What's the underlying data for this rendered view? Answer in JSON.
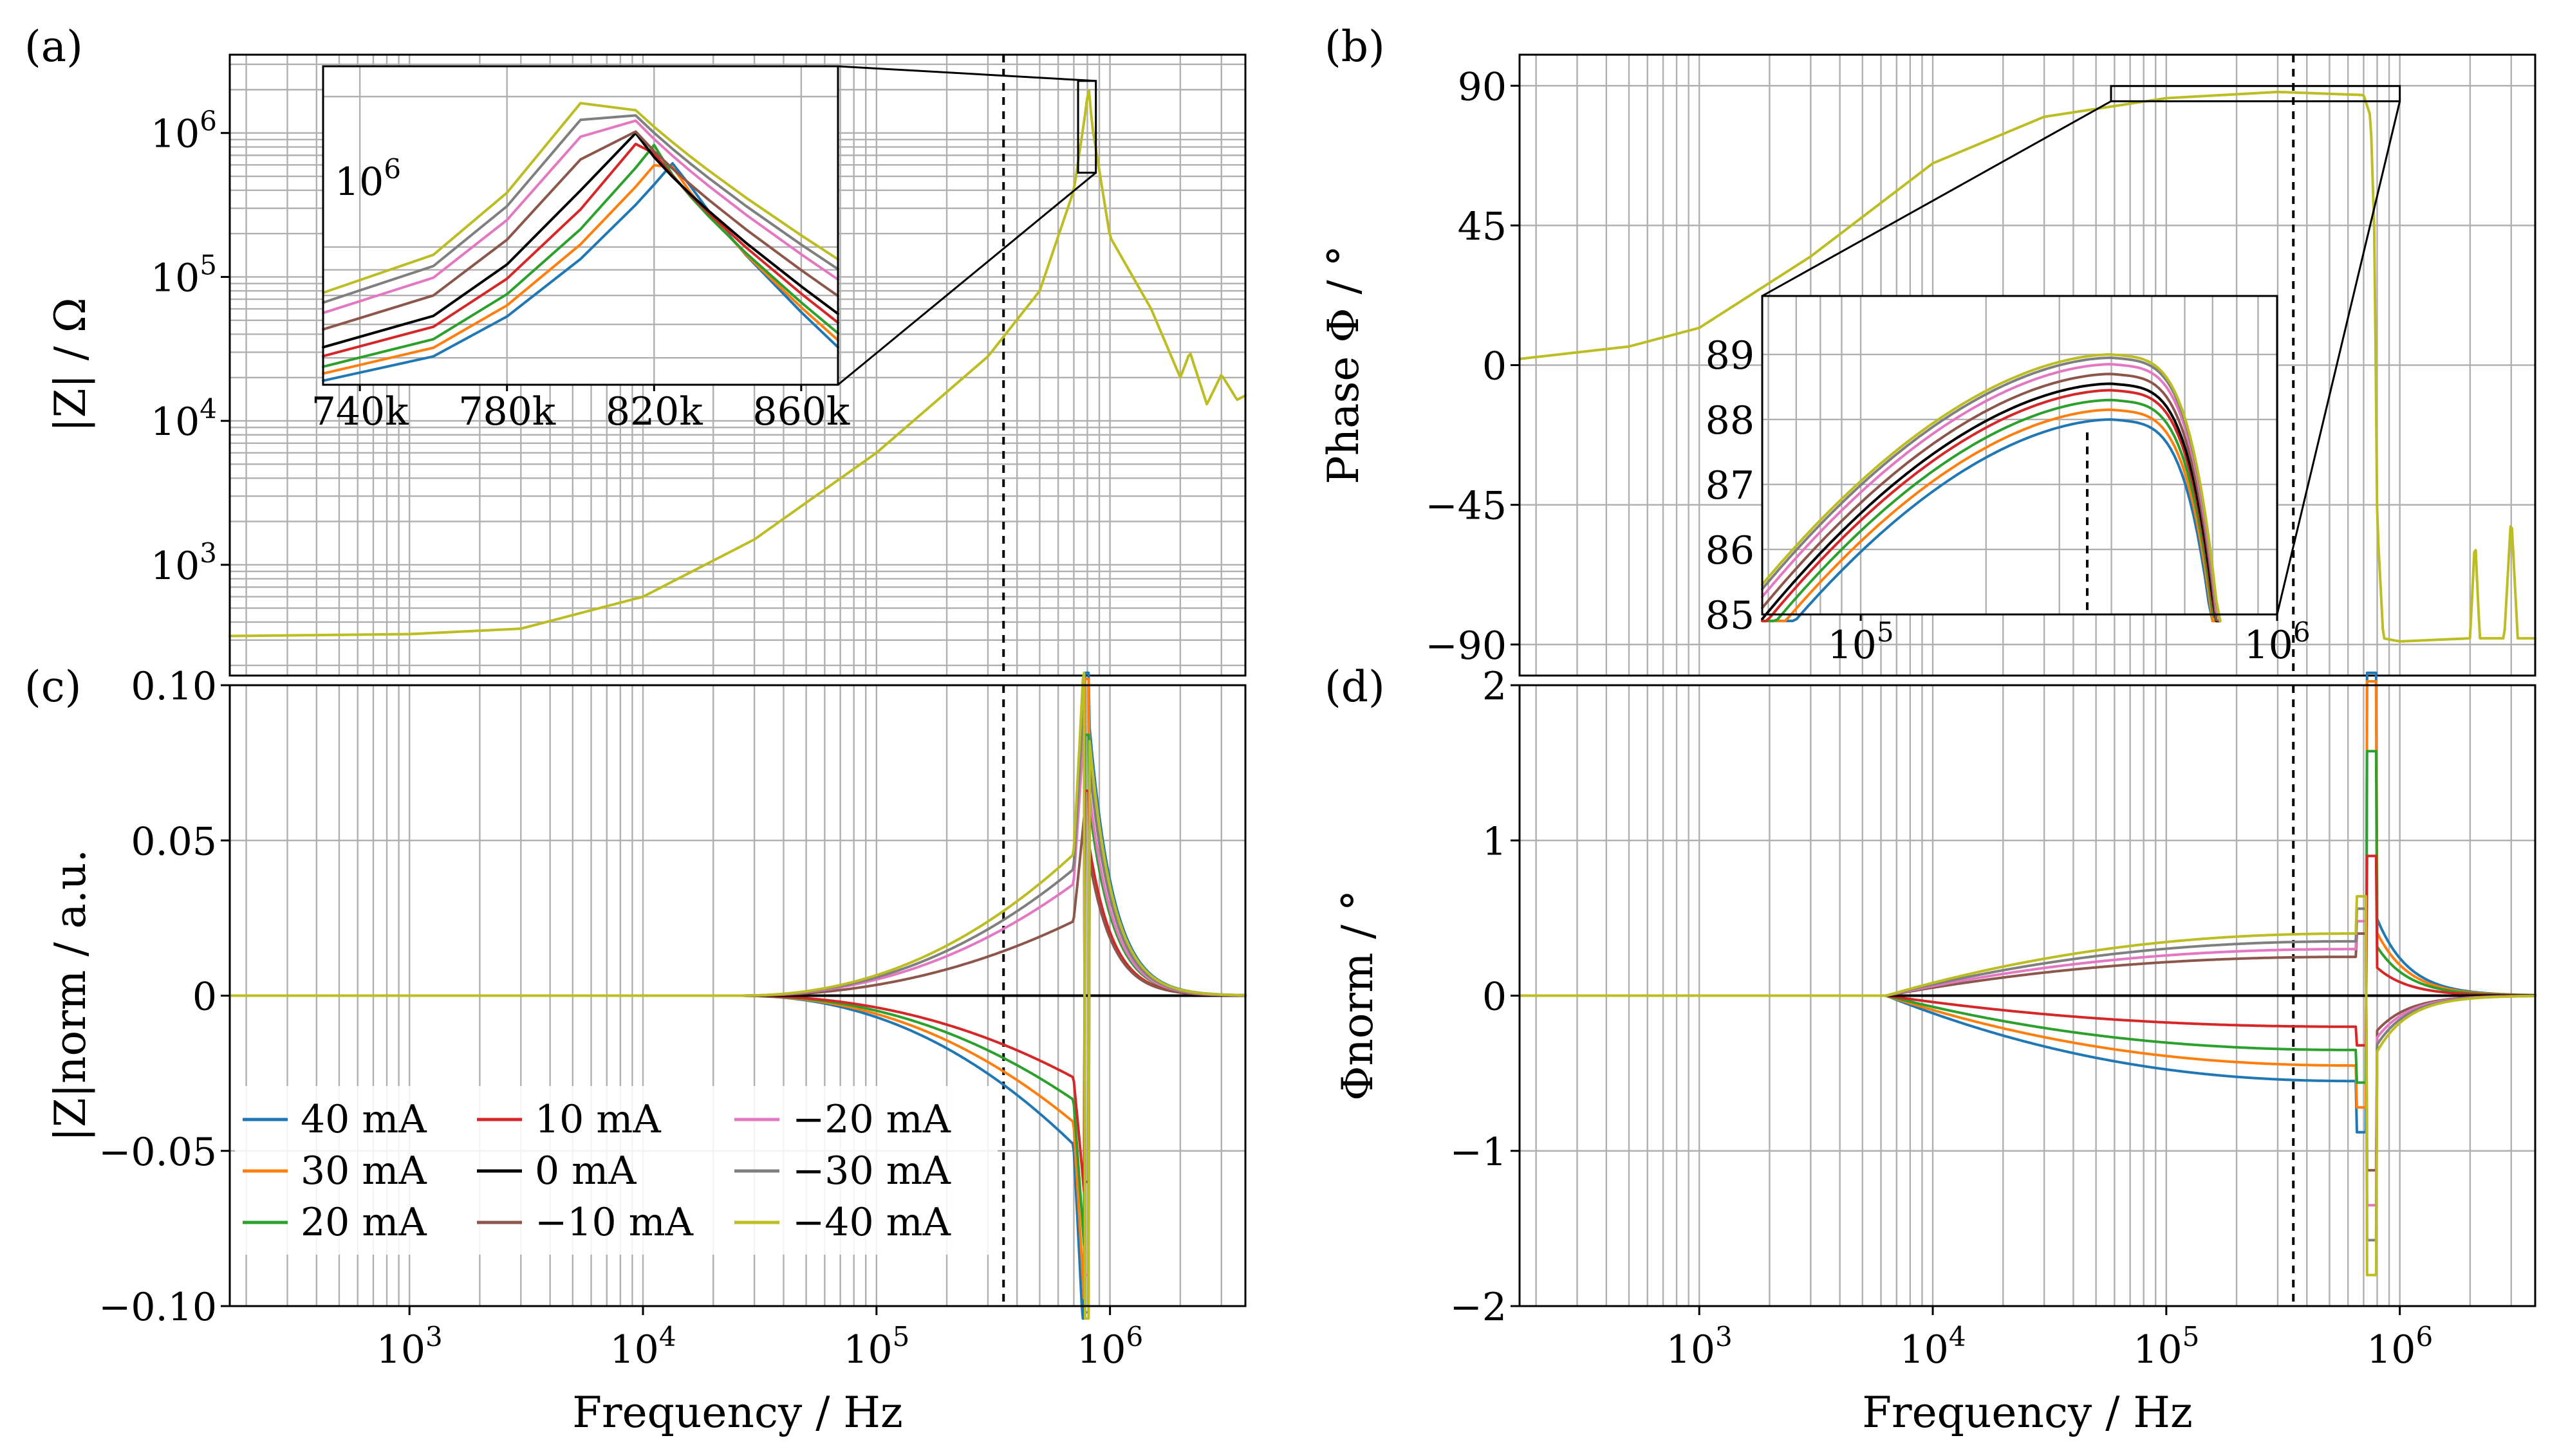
{
  "chart_data": [
    {
      "panel": "(a)",
      "type": "line",
      "scale": "loglog",
      "xlabel": "Frequency / Hz",
      "ylabel": "|Z| / Ω",
      "xlim": [
        170,
        3800000
      ],
      "ylim": [
        170,
        3500000
      ],
      "xtick_labels": [
        "10^3",
        "10^4",
        "10^5",
        "10^6"
      ],
      "ytick_labels": [
        "10^3",
        "10^4",
        "10^5",
        "10^6"
      ],
      "vline_x": 350000,
      "curve_points": [
        [
          170,
          320
        ],
        [
          1000,
          330
        ],
        [
          3000,
          360
        ],
        [
          10000,
          600
        ],
        [
          30000,
          1500
        ],
        [
          100000,
          6000
        ],
        [
          300000,
          28000
        ],
        [
          500000,
          80000
        ],
        [
          700000,
          400000
        ],
        [
          780000,
          1300000
        ],
        [
          810000,
          2100000
        ],
        [
          840000,
          1100000
        ],
        [
          1000000,
          190000
        ],
        [
          1500000,
          60000
        ],
        [
          2000000,
          20000
        ],
        [
          2200000,
          30000
        ],
        [
          2600000,
          13000
        ],
        [
          3000000,
          21000
        ],
        [
          3500000,
          14000
        ],
        [
          3800000,
          15000
        ]
      ],
      "inset": {
        "xlim": [
          730000,
          870000
        ],
        "ylim": [
          530000,
          2300000
        ],
        "xtick_labels": [
          "740k",
          "780k",
          "820k",
          "860k"
        ],
        "ytick_label": "10^6",
        "x_points": [
          730000,
          760000,
          780000,
          800000,
          815000,
          820000,
          825000,
          830000,
          835000,
          845000,
          860000,
          870000
        ],
        "series_peaks": [
          {
            "name": "40 mA",
            "peak": 1500000
          },
          {
            "name": "30 mA",
            "peak": 1550000
          },
          {
            "name": "20 mA",
            "peak": 1600000
          },
          {
            "name": "10 mA",
            "peak": 1680000
          },
          {
            "name": "0 mA",
            "peak": 1750000
          },
          {
            "name": "−10 mA",
            "peak": 1900000
          },
          {
            "name": "−20 mA",
            "peak": 2050000
          },
          {
            "name": "−30 mA",
            "peak": 2150000
          },
          {
            "name": "−40 mA",
            "peak": 2250000
          }
        ]
      }
    },
    {
      "panel": "(b)",
      "type": "line",
      "scale": "semilogx",
      "xlabel": "",
      "ylabel": "Phase Φ / °",
      "xlim": [
        170,
        3800000
      ],
      "ylim": [
        -100,
        100
      ],
      "xtick_labels": [],
      "ytick_labels": [
        "90",
        "45",
        "0",
        "−45",
        "−90"
      ],
      "ytick_values": [
        90,
        45,
        0,
        -45,
        -90
      ],
      "vline_x": 350000,
      "curve_points": [
        [
          170,
          2
        ],
        [
          500,
          6
        ],
        [
          1000,
          12
        ],
        [
          3000,
          35
        ],
        [
          10000,
          65
        ],
        [
          30000,
          80
        ],
        [
          100000,
          86
        ],
        [
          300000,
          88
        ],
        [
          700000,
          87
        ],
        [
          750000,
          80
        ],
        [
          780000,
          40
        ],
        [
          800000,
          -50
        ],
        [
          850000,
          -88
        ],
        [
          1000000,
          -89
        ],
        [
          2000000,
          -88
        ],
        [
          2100000,
          -55
        ],
        [
          2200000,
          -88
        ],
        [
          2800000,
          -88
        ],
        [
          3000000,
          -48
        ],
        [
          3200000,
          -88
        ],
        [
          3800000,
          -88
        ]
      ],
      "inset": {
        "xlim": [
          58000,
          1000000
        ],
        "ylim": [
          85,
          89.9
        ],
        "xtick_labels": [
          "10^5",
          "10^6"
        ],
        "ytick_labels": [
          "89",
          "88",
          "87",
          "86",
          "85"
        ],
        "vline_x": 350000,
        "series_peaks": [
          {
            "name": "40 mA",
            "peak": 88.0
          },
          {
            "name": "30 mA",
            "peak": 88.15
          },
          {
            "name": "20 mA",
            "peak": 88.3
          },
          {
            "name": "10 mA",
            "peak": 88.45
          },
          {
            "name": "0 mA",
            "peak": 88.55
          },
          {
            "name": "−10 mA",
            "peak": 88.7
          },
          {
            "name": "−20 mA",
            "peak": 88.85
          },
          {
            "name": "−30 mA",
            "peak": 88.95
          },
          {
            "name": "−40 mA",
            "peak": 89.0
          }
        ]
      }
    },
    {
      "panel": "(c)",
      "type": "line",
      "scale": "semilogx",
      "xlabel": "Frequency / Hz",
      "ylabel": "|Z|norm / a.u.",
      "xlim": [
        170,
        3800000
      ],
      "ylim": [
        -0.1,
        0.1
      ],
      "xtick_labels": [
        "10^3",
        "10^4",
        "10^5",
        "10^6"
      ],
      "ytick_labels": [
        "0.10",
        "0.05",
        "0",
        "−0.05",
        "−0.10"
      ],
      "ytick_values": [
        0.1,
        0.05,
        0,
        -0.05,
        -0.1
      ],
      "vline_x": 350000,
      "series": [
        {
          "name": "40 mA",
          "color": "#1f77b4",
          "amp": -1.0
        },
        {
          "name": "30 mA",
          "color": "#ff7f0e",
          "amp": -0.85
        },
        {
          "name": "20 mA",
          "color": "#2ca02c",
          "amp": -0.7
        },
        {
          "name": "10 mA",
          "color": "#d62728",
          "amp": -0.55
        },
        {
          "name": "0 mA",
          "color": "#000000",
          "amp": 0.0
        },
        {
          "name": "−10 mA",
          "color": "#8c564b",
          "amp": 0.5
        },
        {
          "name": "−20 mA",
          "color": "#e377c2",
          "amp": 0.75
        },
        {
          "name": "−30 mA",
          "color": "#7f7f7f",
          "amp": 0.85
        },
        {
          "name": "−40 mA",
          "color": "#bcbd22",
          "amp": 0.95
        }
      ]
    },
    {
      "panel": "(d)",
      "type": "line",
      "scale": "semilogx",
      "xlabel": "Frequency / Hz",
      "ylabel": "Φnorm / °",
      "xlim": [
        170,
        3800000
      ],
      "ylim": [
        -2,
        2
      ],
      "xtick_labels": [
        "10^3",
        "10^4",
        "10^5",
        "10^6"
      ],
      "ytick_labels": [
        "2",
        "1",
        "0",
        "−1",
        "−2"
      ],
      "ytick_values": [
        2,
        1,
        0,
        -1,
        -2
      ],
      "vline_x": 350000,
      "series": [
        {
          "name": "40 mA",
          "color": "#1f77b4",
          "amp": -0.55
        },
        {
          "name": "30 mA",
          "color": "#ff7f0e",
          "amp": -0.45
        },
        {
          "name": "20 mA",
          "color": "#2ca02c",
          "amp": -0.35
        },
        {
          "name": "10 mA",
          "color": "#d62728",
          "amp": -0.2
        },
        {
          "name": "0 mA",
          "color": "#000000",
          "amp": 0.0
        },
        {
          "name": "−10 mA",
          "color": "#8c564b",
          "amp": 0.25
        },
        {
          "name": "−20 mA",
          "color": "#e377c2",
          "amp": 0.3
        },
        {
          "name": "−30 mA",
          "color": "#7f7f7f",
          "amp": 0.35
        },
        {
          "name": "−40 mA",
          "color": "#bcbd22",
          "amp": 0.4
        }
      ]
    }
  ],
  "legend": {
    "location": "lower-left of panel (c)",
    "entries": [
      "40 mA",
      "30 mA",
      "20 mA",
      "10 mA",
      "0 mA",
      "−10 mA",
      "−20 mA",
      "−30 mA",
      "−40 mA"
    ],
    "colors": [
      "#1f77b4",
      "#ff7f0e",
      "#2ca02c",
      "#d62728",
      "#000000",
      "#8c564b",
      "#e377c2",
      "#7f7f7f",
      "#bcbd22"
    ]
  },
  "panel_labels": [
    "(a)",
    "(b)",
    "(c)",
    "(d)"
  ]
}
